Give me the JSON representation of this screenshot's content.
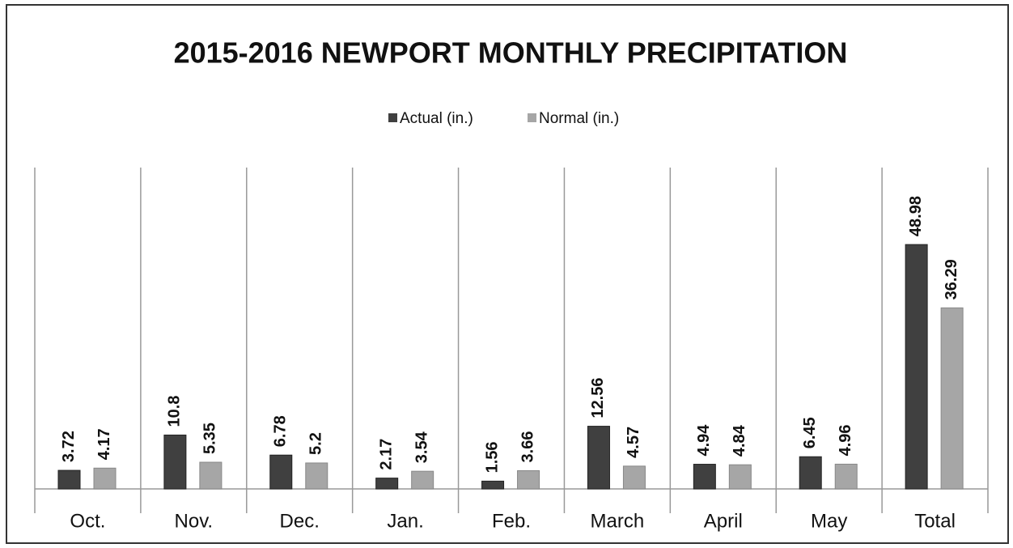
{
  "chart_data": {
    "type": "bar",
    "title": "2015-2016 NEWPORT MONTHLY PRECIPITATION",
    "categories": [
      "Oct.",
      "Nov.",
      "Dec.",
      "Jan.",
      "Feb.",
      "March",
      "April",
      "May",
      "Total"
    ],
    "series": [
      {
        "name": "Actual (in.)",
        "color": "#404040",
        "values": [
          3.72,
          10.8,
          6.78,
          2.17,
          1.56,
          12.56,
          4.94,
          6.45,
          48.98
        ]
      },
      {
        "name": "Normal (in.)",
        "color": "#a6a6a6",
        "values": [
          4.17,
          5.35,
          5.2,
          3.54,
          3.66,
          4.57,
          4.84,
          4.96,
          36.29
        ]
      }
    ],
    "legend": "top"
  }
}
